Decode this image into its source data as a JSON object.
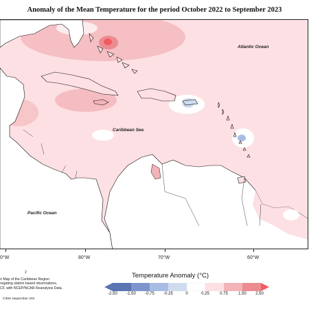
{
  "title": "Anomaly of the Mean Temperature for the period October 2022 to September 2023",
  "ocean_labels": {
    "atlantic": "Atlantic Ocean",
    "caribbean": "Caribbean Sea",
    "pacific": "Pacific Ocean"
  },
  "longitude_labels": [
    "0°W",
    "80°W",
    "70°W",
    "60°W"
  ],
  "notes": {
    "marker": "2",
    "line1": "n Map of the Caribbean Region",
    "line2": "regating station based observations,",
    "line3": "CF, with NCEP/NCAR Reanalysis Data."
  },
  "credit": "CIMH September 202",
  "legend": {
    "title": "Temperature Anomaly (°C)",
    "ticks": [
      "-2.50",
      "-1.50",
      "-0.75",
      "-0.25",
      "0",
      "0.25",
      "0.75",
      "1.50",
      "2.50"
    ],
    "colors": {
      "below_m2_5": "#5a74b4",
      "m2_5_to_m1_5": "#7d95cc",
      "m1_5_to_m0_75": "#a9bde4",
      "m0_75_to_m0_25": "#cfdcee",
      "m0_25_to_0": "#e9f0f6",
      "0_to_0_25": "#ffffff",
      "0_25_to_0_75": "#fde0e3",
      "0_75_to_1_5": "#f2b4b8",
      "1_5_to_2_5": "#ec8c91",
      "above_2_5": "#f25a64"
    }
  }
}
